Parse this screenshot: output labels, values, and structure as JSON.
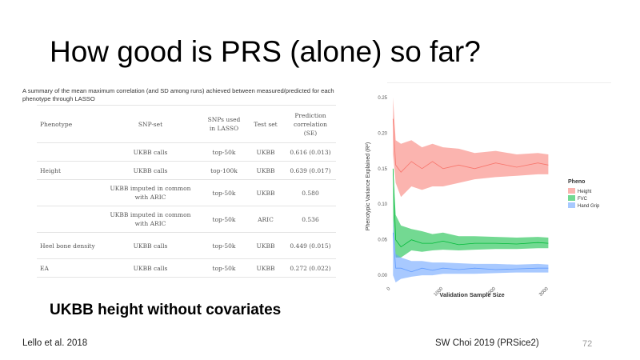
{
  "slide": {
    "title": "How good is PRS (alone) so far?",
    "subtitle": "UKBB height without covariates",
    "cite_left": "Lello et al. 2018",
    "cite_right": "SW Choi 2019 (PRSice2)",
    "page_number": "72"
  },
  "table": {
    "caption": "A summary of the mean maximum correlation (and SD among runs) achieved between measured/predicted for each phenotype through LASSO",
    "headers": [
      "Phenotype",
      "SNP-set",
      "SNPs used in LASSO",
      "Test set",
      "Prediction correlation (SE)"
    ],
    "rows": [
      [
        "",
        "UKBB calls",
        "top-50k",
        "UKBB",
        "0.616 (0.013)"
      ],
      [
        "Height",
        "UKBB calls",
        "top-100k",
        "UKBB",
        "0.639 (0.017)"
      ],
      [
        "",
        "UKBB imputed in common with ARIC",
        "top-50k",
        "UKBB",
        "0.580"
      ],
      [
        "",
        "UKBB imputed in common with ARIC",
        "top-50k",
        "ARIC",
        "0.536"
      ],
      [
        "Heel bone density",
        "UKBB calls",
        "top-50k",
        "UKBB",
        "0.449 (0.015)"
      ],
      [
        "EA",
        "UKBB calls",
        "top-50k",
        "UKBB",
        "0.272 (0.022)"
      ]
    ]
  },
  "chart_data": {
    "type": "area",
    "title": "",
    "xlabel": "Validation Sample Size",
    "ylabel": "Phenotypic Variance Explained (R²)",
    "xlim": [
      0,
      3100
    ],
    "ylim": [
      -0.01,
      0.26
    ],
    "x_ticks": [
      0,
      1000,
      2000,
      3000
    ],
    "y_ticks": [
      0.0,
      0.05,
      0.1,
      0.15,
      0.2,
      0.25
    ],
    "y_tick_labels": [
      "0.00",
      "0.05",
      "0.10",
      "0.15",
      "0.20",
      "0.25"
    ],
    "grid": false,
    "legend_title": "Pheno",
    "legend_position": "right",
    "x": [
      50,
      100,
      200,
      400,
      600,
      800,
      1000,
      1300,
      1600,
      2000,
      2400,
      2800,
      3000
    ],
    "series": [
      {
        "name": "Height",
        "color": "#f8766d",
        "mean": [
          0.22,
          0.155,
          0.145,
          0.16,
          0.15,
          0.16,
          0.15,
          0.155,
          0.15,
          0.158,
          0.152,
          0.158,
          0.155
        ],
        "lower": [
          0.17,
          0.13,
          0.11,
          0.125,
          0.12,
          0.125,
          0.125,
          0.13,
          0.135,
          0.138,
          0.14,
          0.142,
          0.142
        ],
        "upper": [
          0.25,
          0.19,
          0.185,
          0.19,
          0.18,
          0.185,
          0.18,
          0.178,
          0.172,
          0.175,
          0.17,
          0.172,
          0.17
        ]
      },
      {
        "name": "FVC",
        "color": "#00ba38",
        "mean": [
          0.15,
          0.05,
          0.04,
          0.05,
          0.045,
          0.045,
          0.048,
          0.043,
          0.045,
          0.045,
          0.044,
          0.046,
          0.045
        ],
        "lower": [
          0.08,
          0.025,
          0.025,
          0.035,
          0.033,
          0.035,
          0.036,
          0.035,
          0.036,
          0.037,
          0.037,
          0.038,
          0.038
        ],
        "upper": [
          0.15,
          0.085,
          0.07,
          0.065,
          0.062,
          0.058,
          0.06,
          0.055,
          0.055,
          0.054,
          0.053,
          0.054,
          0.053
        ]
      },
      {
        "name": "Hand Grip",
        "color": "#619cff",
        "mean": [
          0.06,
          0.01,
          0.01,
          0.005,
          0.01,
          0.007,
          0.01,
          0.008,
          0.01,
          0.008,
          0.009,
          0.01,
          0.01
        ],
        "lower": [
          0.0,
          -0.01,
          -0.005,
          -0.002,
          0.0,
          0.0,
          0.002,
          0.002,
          0.002,
          0.003,
          0.004,
          0.004,
          0.004
        ],
        "upper": [
          0.08,
          0.03,
          0.025,
          0.02,
          0.02,
          0.018,
          0.018,
          0.017,
          0.016,
          0.016,
          0.015,
          0.016,
          0.015
        ]
      }
    ]
  }
}
